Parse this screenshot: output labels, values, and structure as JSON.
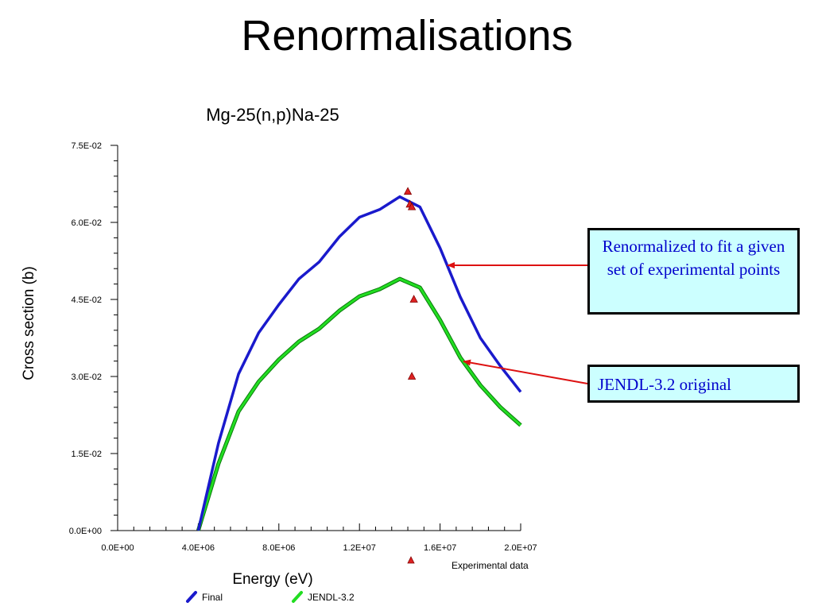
{
  "slide": {
    "title": "Renormalisations",
    "callouts": [
      {
        "text": "Renormalized to fit a given set of experimental points"
      },
      {
        "text": "JENDL-3.2 original"
      }
    ]
  },
  "colors": {
    "final": "#1a1acc",
    "jendl": "#22dd22",
    "experimental": "#dd2222",
    "arrow": "#dd1111",
    "callout_bg": "#ccffff",
    "callout_text": "#0000cc"
  },
  "chart_data": {
    "type": "line",
    "title": "Mg-25(n,p)Na-25",
    "xlabel": "Energy (eV)",
    "ylabel": "Cross section (b)",
    "xlim": [
      0,
      20000000
    ],
    "ylim": [
      0,
      0.075
    ],
    "x_ticks": [
      "0.0E+00",
      "4.0E+06",
      "8.0E+06",
      "1.2E+07",
      "1.6E+07",
      "2.0E+07"
    ],
    "y_ticks": [
      "0.0E+00",
      "1.5E-02",
      "3.0E-02",
      "4.5E-02",
      "6.0E-02",
      "7.5E-02"
    ],
    "series": [
      {
        "name": "Final",
        "x": [
          4000000,
          5000000,
          6000000,
          7000000,
          8000000,
          9000000,
          10000000,
          11000000,
          12000000,
          13000000,
          14000000,
          15000000,
          16000000,
          17000000,
          18000000,
          19000000,
          20000000
        ],
        "y": [
          0,
          0.017,
          0.0305,
          0.0385,
          0.044,
          0.049,
          0.0523,
          0.0572,
          0.061,
          0.0625,
          0.065,
          0.063,
          0.055,
          0.0455,
          0.0375,
          0.032,
          0.027
        ]
      },
      {
        "name": "JENDL-3.2",
        "x": [
          4000000,
          5000000,
          6000000,
          7000000,
          8000000,
          9000000,
          10000000,
          11000000,
          12000000,
          13000000,
          14000000,
          15000000,
          16000000,
          17000000,
          18000000,
          19000000,
          20000000
        ],
        "y": [
          0,
          0.013,
          0.0232,
          0.029,
          0.0333,
          0.0368,
          0.0393,
          0.0428,
          0.0456,
          0.047,
          0.049,
          0.0473,
          0.041,
          0.0337,
          0.0283,
          0.024,
          0.0205
        ]
      },
      {
        "name": "Experimental data",
        "marker": "triangle",
        "x": [
          14400000,
          14500000,
          14600000,
          14700000,
          14600000
        ],
        "y": [
          0.066,
          0.0635,
          0.063,
          0.045,
          0.03
        ]
      }
    ],
    "legend": [
      {
        "label": "Experimental data",
        "marker": "triangle"
      },
      {
        "label": "Final",
        "marker": "line"
      },
      {
        "label": "JENDL-3.2",
        "marker": "line"
      }
    ]
  }
}
